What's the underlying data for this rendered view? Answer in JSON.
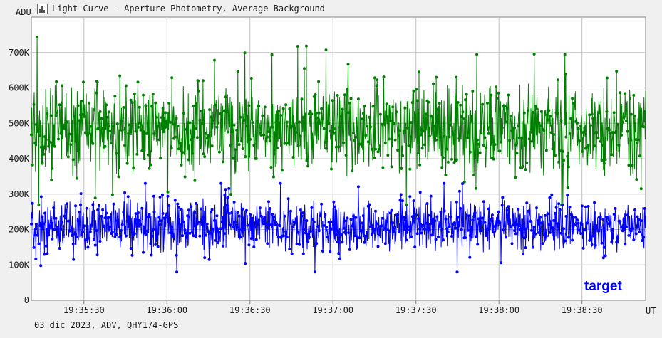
{
  "window": {
    "title": "Light Curve - Aperture Photometry, Average Background",
    "footer": "03 dic 2023, ADV, QHY174-GPS"
  },
  "icons": {
    "title": "light-curve-icon"
  },
  "chart_data": {
    "type": "line",
    "ylabel": "ADU",
    "xlabel": "UT",
    "ylim": [
      0,
      800000
    ],
    "yticks": [
      0,
      100000,
      200000,
      300000,
      400000,
      500000,
      600000,
      700000
    ],
    "ytick_labels": [
      "0",
      "100K",
      "200K",
      "300K",
      "400K",
      "500K",
      "600K",
      "700K"
    ],
    "xlim": [
      "19:35:11",
      "19:38:53"
    ],
    "xticks": [
      "19:35:30",
      "19:36:00",
      "19:36:30",
      "19:37:00",
      "19:37:30",
      "19:38:00",
      "19:38:30"
    ],
    "grid": true,
    "markers": true,
    "annotation": "target",
    "series": [
      {
        "name": "",
        "color": "#008000",
        "mean": 480000,
        "typical_range": [
          350000,
          620000
        ],
        "min": 270000,
        "max": 760000,
        "sample_count": 1500
      },
      {
        "name": "target",
        "color": "#0000ff",
        "mean": 210000,
        "typical_range": [
          130000,
          290000
        ],
        "min": 80000,
        "max": 330000,
        "sample_count": 1500
      }
    ]
  }
}
